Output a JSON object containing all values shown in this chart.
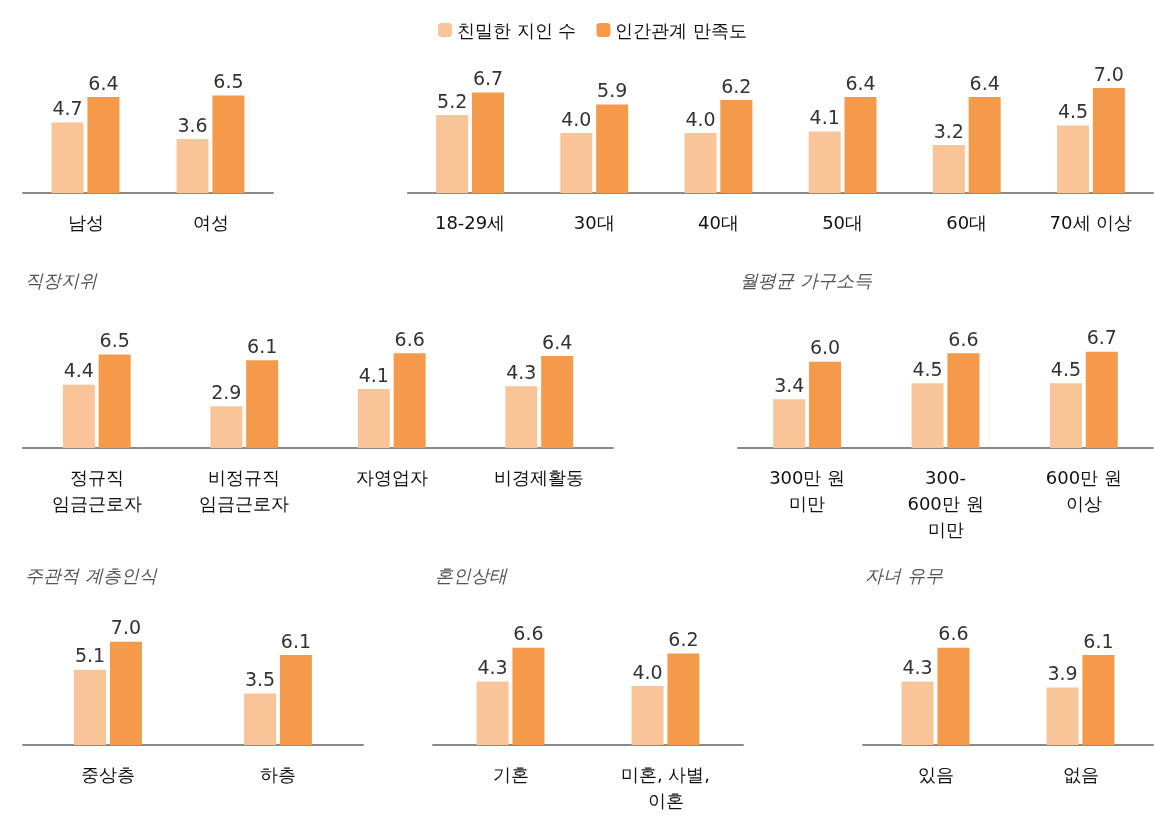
{
  "chart_data": [
    {
      "type": "bar",
      "categories": [
        "남성",
        "여성"
      ],
      "series": [
        {
          "color": "#f9c497",
          "values": [
            4.7,
            3.6
          ],
          "value_labels": [
            "4.7",
            "3.6"
          ]
        },
        {
          "color": "#f5994a",
          "values": [
            6.4,
            6.5
          ],
          "value_labels": [
            "6.4",
            "6.5"
          ]
        }
      ],
      "legend": false
    },
    {
      "type": "bar",
      "categories": [
        "18-29세",
        "30대",
        "40대",
        "50대",
        "60대",
        "70세 이상"
      ],
      "series": [
        {
          "name": "친밀한 지인 수",
          "color": "#f9c497",
          "values": [
            5.2,
            4.0,
            4.0,
            4.1,
            3.2,
            4.5
          ],
          "value_labels": [
            "5.2",
            "4.0",
            "4.0",
            "4.1",
            "3.2",
            "4.5"
          ]
        },
        {
          "name": "인간관계 만족도",
          "color": "#f5994a",
          "values": [
            6.7,
            5.9,
            6.2,
            6.4,
            6.4,
            7.0
          ],
          "value_labels": [
            "6.7",
            "5.9",
            "6.2",
            "6.4",
            "6.4",
            "7.0"
          ]
        }
      ],
      "legend": "top left"
    },
    {
      "type": "bar",
      "title": "직장지위",
      "categories": [
        "정규직\n임금근로자",
        "비정규직\n임금근로자",
        "자영업자",
        "비경제활동"
      ],
      "series": [
        {
          "color": "#f9c497",
          "values": [
            4.4,
            2.9,
            4.1,
            4.3
          ],
          "value_labels": [
            "4.4",
            "2.9",
            "4.1",
            "4.3"
          ]
        },
        {
          "color": "#f5994a",
          "values": [
            6.5,
            6.1,
            6.6,
            6.4
          ],
          "value_labels": [
            "6.5",
            "6.1",
            "6.6",
            "6.4"
          ]
        }
      ],
      "legend": false
    },
    {
      "type": "bar",
      "title": "월평균 가구소득",
      "categories": [
        "300만 원\n미만",
        "300-\n600만 원\n미만",
        "600만 원\n이상"
      ],
      "series": [
        {
          "color": "#f9c497",
          "values": [
            3.4,
            4.5,
            4.5
          ],
          "value_labels": [
            "3.4",
            "4.5",
            "4.5"
          ]
        },
        {
          "color": "#f5994a",
          "values": [
            6.0,
            6.6,
            6.7
          ],
          "value_labels": [
            "6.0",
            "6.6",
            "6.7"
          ]
        }
      ],
      "legend": false
    },
    {
      "type": "bar",
      "title": "주관적 계층인식",
      "categories": [
        "중상층",
        "하층"
      ],
      "series": [
        {
          "color": "#f9c497",
          "values": [
            5.1,
            3.5
          ],
          "value_labels": [
            "5.1",
            "3.5"
          ]
        },
        {
          "color": "#f5994a",
          "values": [
            7.0,
            6.1
          ],
          "value_labels": [
            "7.0",
            "6.1"
          ]
        }
      ],
      "legend": false
    },
    {
      "type": "bar",
      "title": "혼인상태",
      "categories": [
        "기혼",
        "미혼, 사별,\n이혼"
      ],
      "series": [
        {
          "color": "#f9c497",
          "values": [
            4.3,
            4.0
          ],
          "value_labels": [
            "4.3",
            "4.0"
          ]
        },
        {
          "color": "#f5994a",
          "values": [
            6.6,
            6.2
          ],
          "value_labels": [
            "6.6",
            "6.2"
          ]
        }
      ],
      "legend": false
    },
    {
      "type": "bar",
      "title": "자녀 유무",
      "categories": [
        "있음",
        "없음"
      ],
      "series": [
        {
          "color": "#f9c497",
          "values": [
            4.3,
            3.9
          ],
          "value_labels": [
            "4.3",
            "3.9"
          ]
        },
        {
          "color": "#f5994a",
          "values": [
            6.6,
            6.1
          ],
          "value_labels": [
            "6.6",
            "6.1"
          ]
        }
      ],
      "legend": false
    }
  ]
}
